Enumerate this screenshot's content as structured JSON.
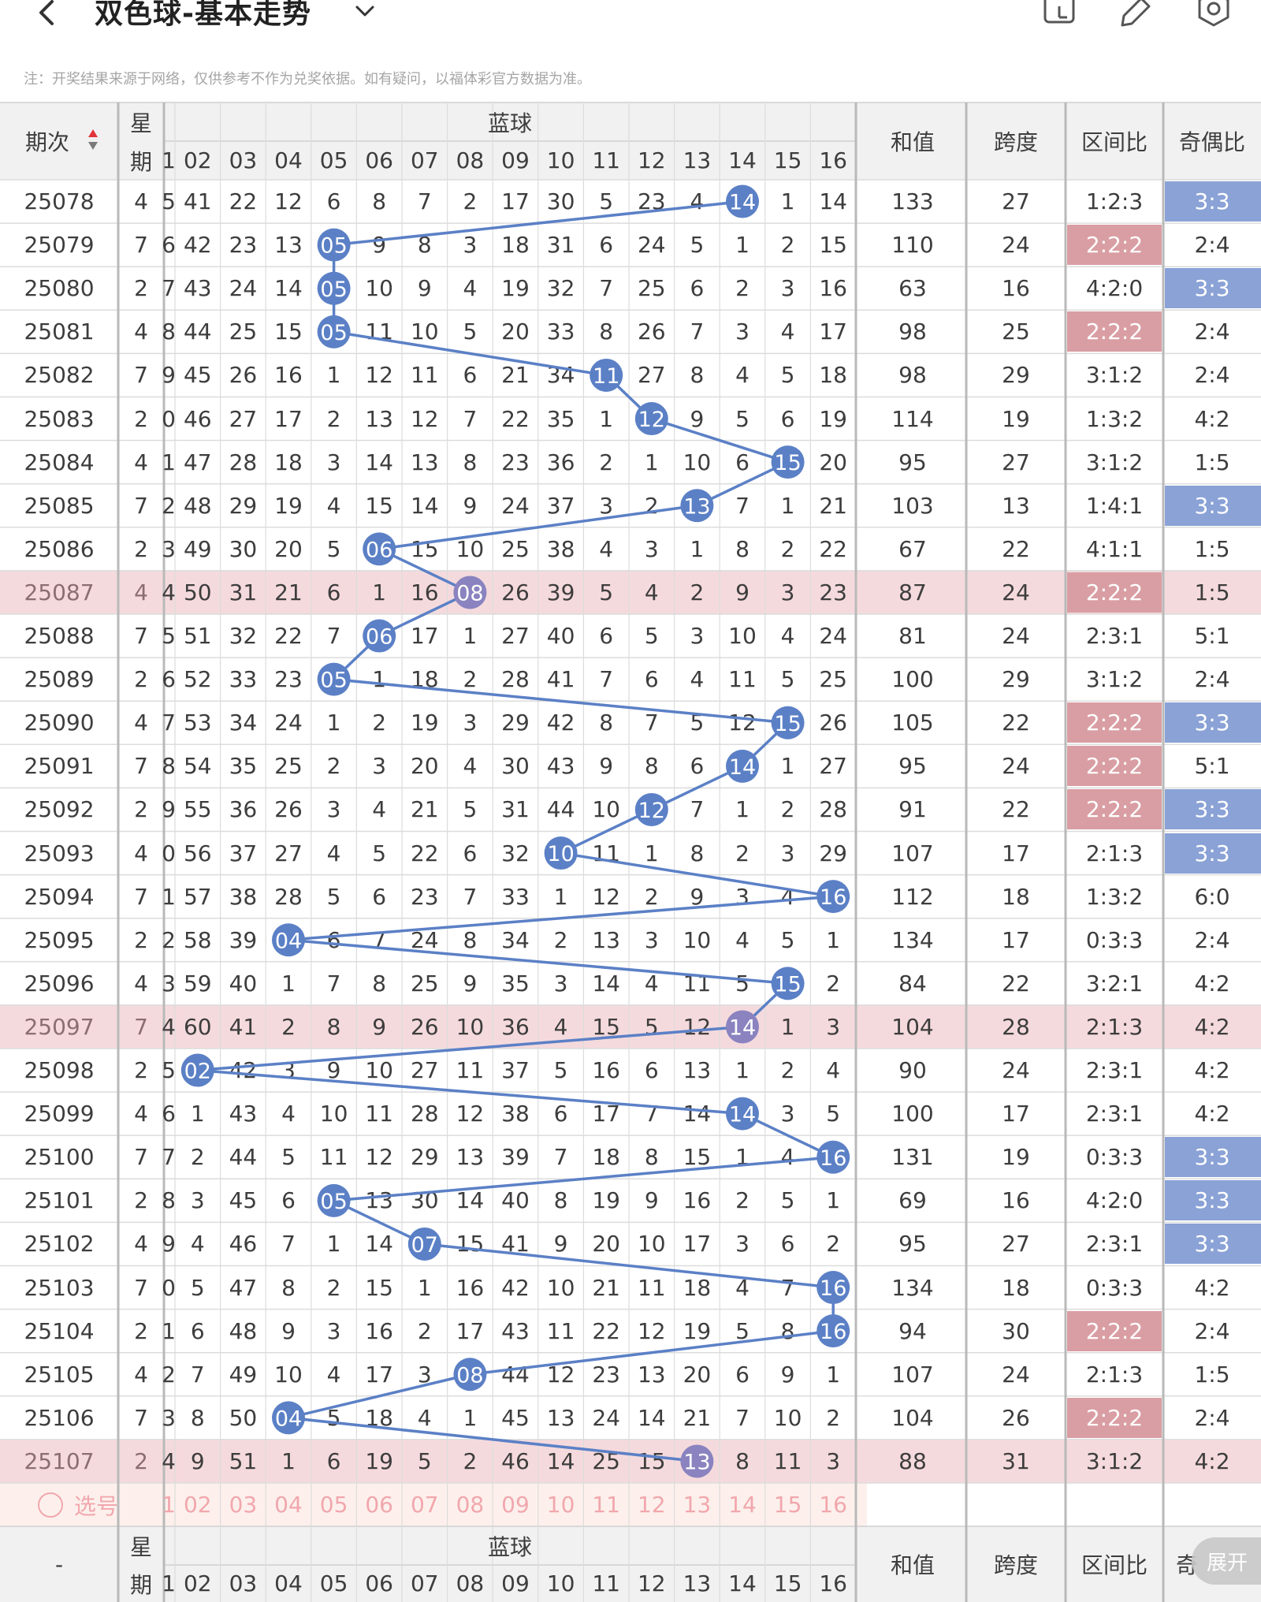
{
  "header": {
    "title": "双色球-基本走势",
    "icons": [
      "back-arrow-icon",
      "chevron-down-icon",
      "history-icon",
      "edit-icon",
      "settings-icon"
    ]
  },
  "notice": "注：开奖结果来源于网络，仅供参考不作为兑奖依据。如有疑问，以福体彩官方数据为准。",
  "table": {
    "headers": {
      "issue": "期次",
      "weekday": "星期",
      "blue_group": "蓝球",
      "sum": "和值",
      "span": "跨度",
      "zone_ratio": "区间比",
      "odd_even": "奇偶比"
    },
    "blue_columns": [
      "1",
      "02",
      "03",
      "04",
      "05",
      "06",
      "07",
      "08",
      "09",
      "10",
      "11",
      "12",
      "13",
      "14",
      "15",
      "16"
    ],
    "rows": [
      {
        "issue": "25078",
        "weekday": "4",
        "cells": [
          "5",
          "41",
          "22",
          "12",
          "6",
          "8",
          "7",
          "2",
          "17",
          "30",
          "5",
          "23",
          "4",
          "14",
          "1",
          "14"
        ],
        "hit": 14,
        "sum": "133",
        "span": "27",
        "zone": "1:2:3",
        "oe": "3:3",
        "zone_hl": false,
        "oe_hl": true,
        "row_hl": false
      },
      {
        "issue": "25079",
        "weekday": "7",
        "cells": [
          "6",
          "42",
          "23",
          "13",
          "05",
          "9",
          "8",
          "3",
          "18",
          "31",
          "6",
          "24",
          "5",
          "1",
          "2",
          "15"
        ],
        "hit": 5,
        "sum": "110",
        "span": "24",
        "zone": "2:2:2",
        "oe": "2:4",
        "zone_hl": true,
        "oe_hl": false,
        "row_hl": false
      },
      {
        "issue": "25080",
        "weekday": "2",
        "cells": [
          "7",
          "43",
          "24",
          "14",
          "05",
          "10",
          "9",
          "4",
          "19",
          "32",
          "7",
          "25",
          "6",
          "2",
          "3",
          "16"
        ],
        "hit": 5,
        "sum": "63",
        "span": "16",
        "zone": "4:2:0",
        "oe": "3:3",
        "zone_hl": false,
        "oe_hl": true,
        "row_hl": false
      },
      {
        "issue": "25081",
        "weekday": "4",
        "cells": [
          "8",
          "44",
          "25",
          "15",
          "05",
          "11",
          "10",
          "5",
          "20",
          "33",
          "8",
          "26",
          "7",
          "3",
          "4",
          "17"
        ],
        "hit": 5,
        "sum": "98",
        "span": "25",
        "zone": "2:2:2",
        "oe": "2:4",
        "zone_hl": true,
        "oe_hl": false,
        "row_hl": false
      },
      {
        "issue": "25082",
        "weekday": "7",
        "cells": [
          "9",
          "45",
          "26",
          "16",
          "1",
          "12",
          "11",
          "6",
          "21",
          "34",
          "11",
          "27",
          "8",
          "4",
          "5",
          "18"
        ],
        "hit": 11,
        "sum": "98",
        "span": "29",
        "zone": "3:1:2",
        "oe": "2:4",
        "zone_hl": false,
        "oe_hl": false,
        "row_hl": false
      },
      {
        "issue": "25083",
        "weekday": "2",
        "cells": [
          "0",
          "46",
          "27",
          "17",
          "2",
          "13",
          "12",
          "7",
          "22",
          "35",
          "1",
          "12",
          "9",
          "5",
          "6",
          "19"
        ],
        "hit": 12,
        "sum": "114",
        "span": "19",
        "zone": "1:3:2",
        "oe": "4:2",
        "zone_hl": false,
        "oe_hl": false,
        "row_hl": false
      },
      {
        "issue": "25084",
        "weekday": "4",
        "cells": [
          "1",
          "47",
          "28",
          "18",
          "3",
          "14",
          "13",
          "8",
          "23",
          "36",
          "2",
          "1",
          "10",
          "6",
          "15",
          "20"
        ],
        "hit": 15,
        "sum": "95",
        "span": "27",
        "zone": "3:1:2",
        "oe": "1:5",
        "zone_hl": false,
        "oe_hl": false,
        "row_hl": false
      },
      {
        "issue": "25085",
        "weekday": "7",
        "cells": [
          "2",
          "48",
          "29",
          "19",
          "4",
          "15",
          "14",
          "9",
          "24",
          "37",
          "3",
          "2",
          "13",
          "7",
          "1",
          "21"
        ],
        "hit": 13,
        "sum": "103",
        "span": "13",
        "zone": "1:4:1",
        "oe": "3:3",
        "zone_hl": false,
        "oe_hl": true,
        "row_hl": false
      },
      {
        "issue": "25086",
        "weekday": "2",
        "cells": [
          "3",
          "49",
          "30",
          "20",
          "5",
          "06",
          "15",
          "10",
          "25",
          "38",
          "4",
          "3",
          "1",
          "8",
          "2",
          "22"
        ],
        "hit": 6,
        "sum": "67",
        "span": "22",
        "zone": "4:1:1",
        "oe": "1:5",
        "zone_hl": false,
        "oe_hl": false,
        "row_hl": false
      },
      {
        "issue": "25087",
        "weekday": "4",
        "cells": [
          "4",
          "50",
          "31",
          "21",
          "6",
          "1",
          "16",
          "08",
          "26",
          "39",
          "5",
          "4",
          "2",
          "9",
          "3",
          "23"
        ],
        "hit": 8,
        "sum": "87",
        "span": "24",
        "zone": "2:2:2",
        "oe": "1:5",
        "zone_hl": true,
        "oe_hl": false,
        "row_hl": true
      },
      {
        "issue": "25088",
        "weekday": "7",
        "cells": [
          "5",
          "51",
          "32",
          "22",
          "7",
          "06",
          "17",
          "1",
          "27",
          "40",
          "6",
          "5",
          "3",
          "10",
          "4",
          "24"
        ],
        "hit": 6,
        "sum": "81",
        "span": "24",
        "zone": "2:3:1",
        "oe": "5:1",
        "zone_hl": false,
        "oe_hl": false,
        "row_hl": false
      },
      {
        "issue": "25089",
        "weekday": "2",
        "cells": [
          "6",
          "52",
          "33",
          "23",
          "05",
          "1",
          "18",
          "2",
          "28",
          "41",
          "7",
          "6",
          "4",
          "11",
          "5",
          "25"
        ],
        "hit": 5,
        "sum": "100",
        "span": "29",
        "zone": "3:1:2",
        "oe": "2:4",
        "zone_hl": false,
        "oe_hl": false,
        "row_hl": false
      },
      {
        "issue": "25090",
        "weekday": "4",
        "cells": [
          "7",
          "53",
          "34",
          "24",
          "1",
          "2",
          "19",
          "3",
          "29",
          "42",
          "8",
          "7",
          "5",
          "12",
          "15",
          "26"
        ],
        "hit": 15,
        "sum": "105",
        "span": "22",
        "zone": "2:2:2",
        "oe": "3:3",
        "zone_hl": true,
        "oe_hl": true,
        "row_hl": false
      },
      {
        "issue": "25091",
        "weekday": "7",
        "cells": [
          "8",
          "54",
          "35",
          "25",
          "2",
          "3",
          "20",
          "4",
          "30",
          "43",
          "9",
          "8",
          "6",
          "14",
          "1",
          "27"
        ],
        "hit": 14,
        "sum": "95",
        "span": "24",
        "zone": "2:2:2",
        "oe": "5:1",
        "zone_hl": true,
        "oe_hl": false,
        "row_hl": false
      },
      {
        "issue": "25092",
        "weekday": "2",
        "cells": [
          "9",
          "55",
          "36",
          "26",
          "3",
          "4",
          "21",
          "5",
          "31",
          "44",
          "10",
          "12",
          "7",
          "1",
          "2",
          "28"
        ],
        "hit": 12,
        "sum": "91",
        "span": "22",
        "zone": "2:2:2",
        "oe": "3:3",
        "zone_hl": true,
        "oe_hl": true,
        "row_hl": false
      },
      {
        "issue": "25093",
        "weekday": "4",
        "cells": [
          "0",
          "56",
          "37",
          "27",
          "4",
          "5",
          "22",
          "6",
          "32",
          "10",
          "11",
          "1",
          "8",
          "2",
          "3",
          "29"
        ],
        "hit": 10,
        "sum": "107",
        "span": "17",
        "zone": "2:1:3",
        "oe": "3:3",
        "zone_hl": false,
        "oe_hl": true,
        "row_hl": false
      },
      {
        "issue": "25094",
        "weekday": "7",
        "cells": [
          "1",
          "57",
          "38",
          "28",
          "5",
          "6",
          "23",
          "7",
          "33",
          "1",
          "12",
          "2",
          "9",
          "3",
          "4",
          "16"
        ],
        "hit": 16,
        "sum": "112",
        "span": "18",
        "zone": "1:3:2",
        "oe": "6:0",
        "zone_hl": false,
        "oe_hl": false,
        "row_hl": false
      },
      {
        "issue": "25095",
        "weekday": "2",
        "cells": [
          "2",
          "58",
          "39",
          "04",
          "6",
          "7",
          "24",
          "8",
          "34",
          "2",
          "13",
          "3",
          "10",
          "4",
          "5",
          "1"
        ],
        "hit": 4,
        "sum": "134",
        "span": "17",
        "zone": "0:3:3",
        "oe": "2:4",
        "zone_hl": false,
        "oe_hl": false,
        "row_hl": false
      },
      {
        "issue": "25096",
        "weekday": "4",
        "cells": [
          "3",
          "59",
          "40",
          "1",
          "7",
          "8",
          "25",
          "9",
          "35",
          "3",
          "14",
          "4",
          "11",
          "5",
          "15",
          "2"
        ],
        "hit": 15,
        "sum": "84",
        "span": "22",
        "zone": "3:2:1",
        "oe": "4:2",
        "zone_hl": false,
        "oe_hl": false,
        "row_hl": false
      },
      {
        "issue": "25097",
        "weekday": "7",
        "cells": [
          "4",
          "60",
          "41",
          "2",
          "8",
          "9",
          "26",
          "10",
          "36",
          "4",
          "15",
          "5",
          "12",
          "14",
          "1",
          "3"
        ],
        "hit": 14,
        "sum": "104",
        "span": "28",
        "zone": "2:1:3",
        "oe": "4:2",
        "zone_hl": false,
        "oe_hl": false,
        "row_hl": true
      },
      {
        "issue": "25098",
        "weekday": "2",
        "cells": [
          "5",
          "02",
          "42",
          "3",
          "9",
          "10",
          "27",
          "11",
          "37",
          "5",
          "16",
          "6",
          "13",
          "1",
          "2",
          "4"
        ],
        "hit": 2,
        "sum": "90",
        "span": "24",
        "zone": "2:3:1",
        "oe": "4:2",
        "zone_hl": false,
        "oe_hl": false,
        "row_hl": false
      },
      {
        "issue": "25099",
        "weekday": "4",
        "cells": [
          "6",
          "1",
          "43",
          "4",
          "10",
          "11",
          "28",
          "12",
          "38",
          "6",
          "17",
          "7",
          "14",
          "14",
          "3",
          "5"
        ],
        "hit": 14,
        "sum": "100",
        "span": "17",
        "zone": "2:3:1",
        "oe": "4:2",
        "zone_hl": false,
        "oe_hl": false,
        "row_hl": false
      },
      {
        "issue": "25100",
        "weekday": "7",
        "cells": [
          "7",
          "2",
          "44",
          "5",
          "11",
          "12",
          "29",
          "13",
          "39",
          "7",
          "18",
          "8",
          "15",
          "1",
          "4",
          "16"
        ],
        "hit": 16,
        "sum": "131",
        "span": "19",
        "zone": "0:3:3",
        "oe": "3:3",
        "zone_hl": false,
        "oe_hl": true,
        "row_hl": false
      },
      {
        "issue": "25101",
        "weekday": "2",
        "cells": [
          "8",
          "3",
          "45",
          "6",
          "05",
          "13",
          "30",
          "14",
          "40",
          "8",
          "19",
          "9",
          "16",
          "2",
          "5",
          "1"
        ],
        "hit": 5,
        "sum": "69",
        "span": "16",
        "zone": "4:2:0",
        "oe": "3:3",
        "zone_hl": false,
        "oe_hl": true,
        "row_hl": false
      },
      {
        "issue": "25102",
        "weekday": "4",
        "cells": [
          "9",
          "4",
          "46",
          "7",
          "1",
          "14",
          "07",
          "15",
          "41",
          "9",
          "20",
          "10",
          "17",
          "3",
          "6",
          "2"
        ],
        "hit": 7,
        "sum": "95",
        "span": "27",
        "zone": "2:3:1",
        "oe": "3:3",
        "zone_hl": false,
        "oe_hl": true,
        "row_hl": false
      },
      {
        "issue": "25103",
        "weekday": "7",
        "cells": [
          "0",
          "5",
          "47",
          "8",
          "2",
          "15",
          "1",
          "16",
          "42",
          "10",
          "21",
          "11",
          "18",
          "4",
          "7",
          "16"
        ],
        "hit": 16,
        "sum": "134",
        "span": "18",
        "zone": "0:3:3",
        "oe": "4:2",
        "zone_hl": false,
        "oe_hl": false,
        "row_hl": false
      },
      {
        "issue": "25104",
        "weekday": "2",
        "cells": [
          "1",
          "6",
          "48",
          "9",
          "3",
          "16",
          "2",
          "17",
          "43",
          "11",
          "22",
          "12",
          "19",
          "5",
          "8",
          "16"
        ],
        "hit": 16,
        "sum": "94",
        "span": "30",
        "zone": "2:2:2",
        "oe": "2:4",
        "zone_hl": true,
        "oe_hl": false,
        "row_hl": false
      },
      {
        "issue": "25105",
        "weekday": "4",
        "cells": [
          "2",
          "7",
          "49",
          "10",
          "4",
          "17",
          "3",
          "08",
          "44",
          "12",
          "23",
          "13",
          "20",
          "6",
          "9",
          "1"
        ],
        "hit": 8,
        "sum": "107",
        "span": "24",
        "zone": "2:1:3",
        "oe": "1:5",
        "zone_hl": false,
        "oe_hl": false,
        "row_hl": false
      },
      {
        "issue": "25106",
        "weekday": "7",
        "cells": [
          "3",
          "8",
          "50",
          "04",
          "5",
          "18",
          "4",
          "1",
          "45",
          "13",
          "24",
          "14",
          "21",
          "7",
          "10",
          "2"
        ],
        "hit": 4,
        "sum": "104",
        "span": "26",
        "zone": "2:2:2",
        "oe": "2:4",
        "zone_hl": true,
        "oe_hl": false,
        "row_hl": false
      },
      {
        "issue": "25107",
        "weekday": "2",
        "cells": [
          "4",
          "9",
          "51",
          "1",
          "6",
          "19",
          "5",
          "2",
          "46",
          "14",
          "25",
          "15",
          "13",
          "8",
          "11",
          "3"
        ],
        "hit": 13,
        "sum": "88",
        "span": "31",
        "zone": "3:1:2",
        "oe": "4:2",
        "zone_hl": false,
        "oe_hl": false,
        "row_hl": true
      }
    ],
    "select_row": {
      "label": "选号",
      "numbers": [
        "1",
        "02",
        "03",
        "04",
        "05",
        "06",
        "07",
        "08",
        "09",
        "10",
        "11",
        "12",
        "13",
        "14",
        "15",
        "16"
      ]
    },
    "footer": {
      "issue": "-",
      "weekday": "星期",
      "blue_group": "蓝球",
      "blue_columns": [
        "1",
        "02",
        "03",
        "04",
        "05",
        "06",
        "07",
        "08",
        "09",
        "10",
        "11",
        "12",
        "13",
        "14",
        "15",
        "16"
      ],
      "sum": "和值",
      "span": "跨度",
      "zone_ratio": "区间比",
      "odd_even": "奇"
    },
    "expand_label": "展开"
  },
  "colors": {
    "ball": "#5b80c6",
    "ball_highlight": "#8a83c0",
    "line": "#5b80c6",
    "oe_highlight": "#8aa2d6",
    "zone_highlight": "#d99ea3",
    "row_highlight": "#f5dadd",
    "header_bg": "#f1f1f1",
    "select_bg": "#fdf0ec",
    "select_text": "#f1a7ad",
    "sort_arrow_up": "#e3343b",
    "sort_arrow_down": "#7a7a7a"
  }
}
